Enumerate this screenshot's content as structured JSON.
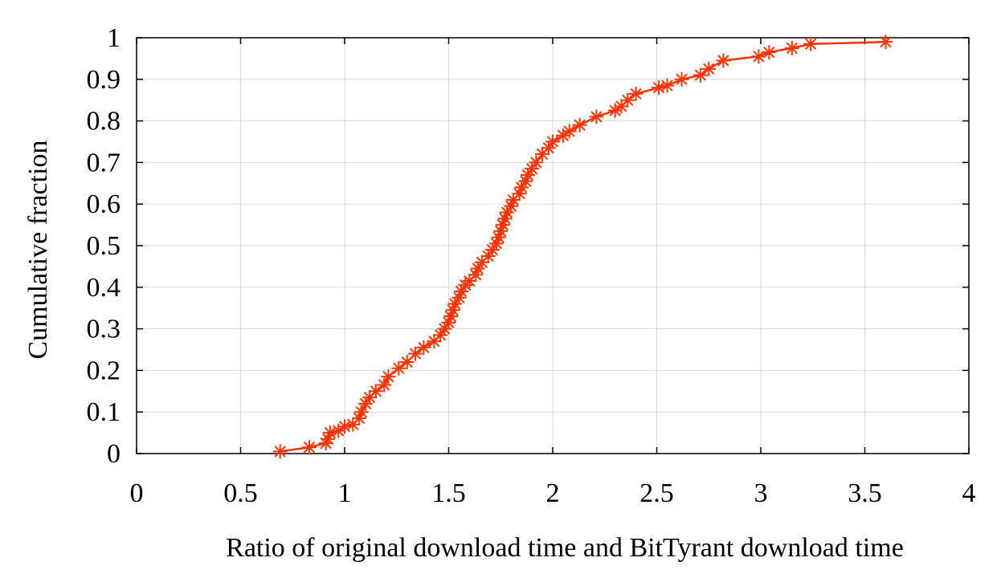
{
  "chart_data": {
    "type": "line",
    "title": "",
    "xlabel": "Ratio of original download time and BitTyrant download time",
    "ylabel": "Cumulative fraction",
    "xlim": [
      0,
      4
    ],
    "ylim": [
      0,
      1
    ],
    "x_ticks": [
      "0",
      "0.5",
      "1",
      "1.5",
      "2",
      "2.5",
      "3",
      "3.5",
      "4"
    ],
    "y_ticks": [
      "0",
      "0.1",
      "0.2",
      "0.3",
      "0.4",
      "0.5",
      "0.6",
      "0.7",
      "0.8",
      "0.9",
      "1"
    ],
    "grid": true,
    "marker": "asterisk",
    "series_color": "#ff3300",
    "grid_color": "#d9d9d9",
    "series": [
      {
        "points": [
          [
            0.69,
            0.005
          ],
          [
            0.83,
            0.015
          ],
          [
            0.91,
            0.025
          ],
          [
            0.92,
            0.035
          ],
          [
            0.93,
            0.05
          ],
          [
            0.97,
            0.055
          ],
          [
            1.0,
            0.065
          ],
          [
            1.04,
            0.07
          ],
          [
            1.07,
            0.085
          ],
          [
            1.08,
            0.1
          ],
          [
            1.1,
            0.12
          ],
          [
            1.12,
            0.135
          ],
          [
            1.15,
            0.15
          ],
          [
            1.19,
            0.165
          ],
          [
            1.21,
            0.185
          ],
          [
            1.26,
            0.205
          ],
          [
            1.3,
            0.22
          ],
          [
            1.34,
            0.24
          ],
          [
            1.38,
            0.255
          ],
          [
            1.43,
            0.27
          ],
          [
            1.46,
            0.285
          ],
          [
            1.48,
            0.3
          ],
          [
            1.5,
            0.315
          ],
          [
            1.51,
            0.33
          ],
          [
            1.52,
            0.345
          ],
          [
            1.53,
            0.36
          ],
          [
            1.55,
            0.375
          ],
          [
            1.56,
            0.39
          ],
          [
            1.58,
            0.405
          ],
          [
            1.6,
            0.415
          ],
          [
            1.63,
            0.43
          ],
          [
            1.64,
            0.445
          ],
          [
            1.66,
            0.46
          ],
          [
            1.69,
            0.475
          ],
          [
            1.71,
            0.49
          ],
          [
            1.73,
            0.505
          ],
          [
            1.74,
            0.52
          ],
          [
            1.75,
            0.535
          ],
          [
            1.76,
            0.55
          ],
          [
            1.77,
            0.565
          ],
          [
            1.78,
            0.58
          ],
          [
            1.8,
            0.595
          ],
          [
            1.81,
            0.61
          ],
          [
            1.84,
            0.625
          ],
          [
            1.85,
            0.64
          ],
          [
            1.87,
            0.655
          ],
          [
            1.88,
            0.67
          ],
          [
            1.9,
            0.685
          ],
          [
            1.92,
            0.7
          ],
          [
            1.95,
            0.72
          ],
          [
            1.98,
            0.735
          ],
          [
            2.0,
            0.75
          ],
          [
            2.05,
            0.765
          ],
          [
            2.08,
            0.775
          ],
          [
            2.13,
            0.79
          ],
          [
            2.21,
            0.81
          ],
          [
            2.3,
            0.825
          ],
          [
            2.33,
            0.835
          ],
          [
            2.36,
            0.85
          ],
          [
            2.4,
            0.865
          ],
          [
            2.51,
            0.88
          ],
          [
            2.55,
            0.885
          ],
          [
            2.62,
            0.9
          ],
          [
            2.71,
            0.91
          ],
          [
            2.75,
            0.925
          ],
          [
            2.82,
            0.945
          ],
          [
            2.99,
            0.955
          ],
          [
            3.04,
            0.965
          ],
          [
            3.15,
            0.975
          ],
          [
            3.24,
            0.985
          ],
          [
            3.6,
            0.99
          ]
        ]
      }
    ]
  }
}
